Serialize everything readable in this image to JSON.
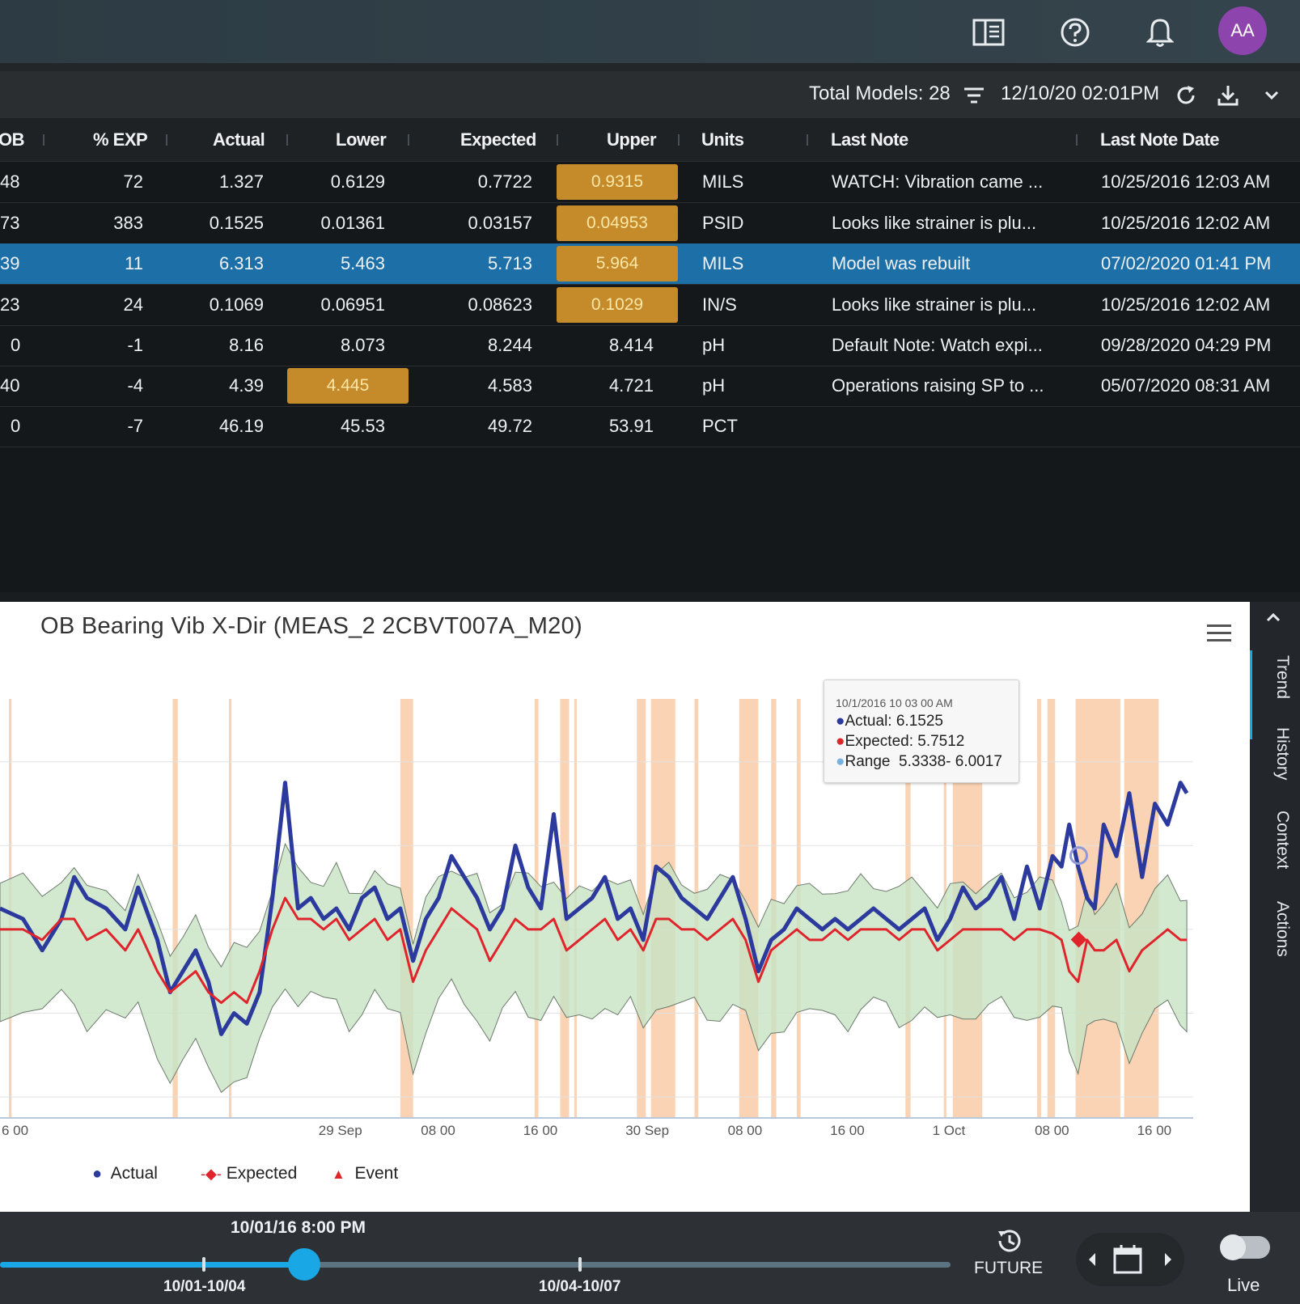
{
  "topbar": {
    "avatar_initials": "AA",
    "icons": [
      "book-icon",
      "help-icon",
      "bell-icon"
    ]
  },
  "toolbar": {
    "total_models": "Total Models: 28",
    "timestamp": "12/10/20 02:01PM",
    "icons": [
      "filter-icon",
      "refresh-icon",
      "download-icon",
      "chevron-down-icon"
    ]
  },
  "grid": {
    "columns": [
      "OB",
      "% EXP",
      "Actual",
      "Lower",
      "Expected",
      "Upper",
      "Units",
      "Last Note",
      "Last Note Date"
    ],
    "rows": [
      {
        "ob": "48",
        "exp": "72",
        "actual": "1.327",
        "lower": "0.6129",
        "expected": "0.7722",
        "upper": "0.9315",
        "units": "MILS",
        "note": "WATCH: Vibration came ...",
        "date": "10/25/2016 12:03 AM"
      },
      {
        "ob": "73",
        "exp": "383",
        "actual": "0.1525",
        "lower": "0.01361",
        "expected": "0.03157",
        "upper": "0.04953",
        "units": "PSID",
        "note": "Looks like strainer is plu...",
        "date": "10/25/2016 12:02 AM"
      },
      {
        "ob": "39",
        "exp": "11",
        "actual": "6.313",
        "lower": "5.463",
        "expected": "5.713",
        "upper": "5.964",
        "units": "MILS",
        "note": "Model was rebuilt",
        "date": "07/02/2020 01:41 PM"
      },
      {
        "ob": "23",
        "exp": "24",
        "actual": "0.1069",
        "lower": "0.06951",
        "expected": "0.08623",
        "upper": "0.1029",
        "units": "IN/S",
        "note": "Looks like strainer is plu...",
        "date": "10/25/2016 12:02 AM"
      },
      {
        "ob": "0",
        "exp": "-1",
        "actual": "8.16",
        "lower": "8.073",
        "expected": "8.244",
        "upper": "8.414",
        "units": "pH",
        "note": "Default Note: Watch expi...",
        "date": "09/28/2020 04:29 PM"
      },
      {
        "ob": "40",
        "exp": "-4",
        "actual": "4.39",
        "lower": "4.445",
        "expected": "4.583",
        "upper": "4.721",
        "units": "pH",
        "note": "Operations raising SP to ...",
        "date": "05/07/2020 08:31 AM"
      },
      {
        "ob": "0",
        "exp": "-7",
        "actual": "46.19",
        "lower": "45.53",
        "expected": "49.72",
        "upper": "53.91",
        "units": "PCT",
        "note": "",
        "date": ""
      }
    ],
    "highlight_color": "#c58a2a",
    "selected_color": "#1d6fa8"
  },
  "chart": {
    "title": "OB Bearing Vib X-Dir (MEAS_2 2CBVT007A_M20)",
    "tooltip": {
      "date": "10/1/2016 10 03 00 AM",
      "actual": "Actual: 6.1525",
      "expected": "Expected: 5.7512",
      "range_label": "Range",
      "range_value": "5.3338- 6.0017"
    },
    "legend": [
      "Actual",
      "Expected",
      "Event"
    ],
    "colors": {
      "actual": "#2c3a9e",
      "expected": "#e0242c",
      "range": "#cde5c9",
      "event": "#f7c49a"
    }
  },
  "chart_data": {
    "type": "line",
    "title": "OB Bearing Vib X-Dir (MEAS_2 2CBVT007A_M20)",
    "x_tick_labels": [
      "6 00",
      "29  Sep",
      "08 00",
      "16 00",
      "30  Sep",
      "08 00",
      "16 00",
      "1  Oct",
      "08 00",
      "16 00"
    ],
    "x_ticks_hours": [
      -2,
      24,
      32,
      40,
      48,
      56,
      64,
      72,
      80,
      88
    ],
    "xlim_hours": [
      -2.3,
      91
    ],
    "ylim": [
      4.9,
      6.9
    ],
    "grid": true,
    "legend_position": "bottom-left",
    "series": [
      {
        "name": "Actual",
        "x": [
          -2.3,
          -0.5,
          1,
          2.5,
          3.5,
          4.5,
          6,
          7.5,
          8.5,
          10,
          11,
          12,
          13,
          14,
          15,
          16,
          17,
          18,
          19,
          20,
          21,
          22,
          23,
          24,
          25,
          26,
          27,
          28,
          29,
          30,
          31,
          32,
          33,
          34,
          35,
          36,
          37,
          38,
          39,
          40,
          41,
          42,
          43,
          44,
          45,
          46,
          47,
          48,
          49,
          50,
          51,
          52,
          53,
          54,
          55,
          56,
          57,
          58,
          59,
          60,
          61,
          62,
          63,
          64,
          65,
          66,
          67,
          68,
          69,
          70,
          71,
          72,
          73,
          74,
          75,
          76,
          77,
          78,
          79,
          80,
          80.7,
          81.3,
          82,
          82.7,
          83.3,
          84,
          85,
          86,
          87,
          88,
          89,
          90,
          90.5
        ],
        "y": [
          5.9,
          5.85,
          5.7,
          5.85,
          6.05,
          5.95,
          5.9,
          5.8,
          6.0,
          5.75,
          5.5,
          5.6,
          5.7,
          5.55,
          5.3,
          5.4,
          5.35,
          5.5,
          5.95,
          6.5,
          5.9,
          5.95,
          5.85,
          5.9,
          5.8,
          5.95,
          6.0,
          5.85,
          5.9,
          5.65,
          5.85,
          5.95,
          6.15,
          6.05,
          5.95,
          5.8,
          5.9,
          6.2,
          6.0,
          5.9,
          6.35,
          5.85,
          5.9,
          5.95,
          6.05,
          5.85,
          5.9,
          5.75,
          6.1,
          6.05,
          5.95,
          5.9,
          5.85,
          5.95,
          6.05,
          5.85,
          5.6,
          5.75,
          5.8,
          5.9,
          5.85,
          5.8,
          5.85,
          5.8,
          5.85,
          5.9,
          5.85,
          5.8,
          5.85,
          5.9,
          5.75,
          5.85,
          6.0,
          5.9,
          5.95,
          6.05,
          5.85,
          6.1,
          5.9,
          6.15,
          6.1,
          6.3,
          6.1,
          5.95,
          5.9,
          6.3,
          6.15,
          6.45,
          6.05,
          6.4,
          6.3,
          6.5,
          6.45
        ]
      },
      {
        "name": "Expected",
        "x": [
          -2.3,
          -0.5,
          1,
          2.5,
          3.5,
          4.5,
          6,
          7.5,
          8.5,
          10,
          11,
          12,
          13,
          14,
          15,
          16,
          17,
          18,
          19,
          20,
          21,
          22,
          23,
          24,
          25,
          26,
          27,
          28,
          29,
          30,
          31,
          32,
          33,
          34,
          35,
          36,
          37,
          38,
          39,
          40,
          41,
          42,
          43,
          44,
          45,
          46,
          47,
          48,
          49,
          50,
          51,
          52,
          53,
          54,
          55,
          56,
          57,
          58,
          59,
          60,
          61,
          62,
          63,
          64,
          65,
          66,
          67,
          68,
          69,
          70,
          71,
          72,
          73,
          74,
          75,
          76,
          77,
          78,
          79,
          80,
          80.7,
          81.3,
          82,
          82.7,
          83.3,
          84,
          85,
          86,
          87,
          88,
          89,
          90,
          90.5
        ],
        "y": [
          5.8,
          5.8,
          5.75,
          5.85,
          5.85,
          5.75,
          5.8,
          5.7,
          5.8,
          5.6,
          5.5,
          5.55,
          5.6,
          5.5,
          5.45,
          5.5,
          5.45,
          5.6,
          5.8,
          5.95,
          5.85,
          5.85,
          5.8,
          5.85,
          5.75,
          5.8,
          5.85,
          5.75,
          5.8,
          5.55,
          5.7,
          5.8,
          5.9,
          5.85,
          5.8,
          5.65,
          5.75,
          5.85,
          5.8,
          5.8,
          5.85,
          5.7,
          5.75,
          5.8,
          5.85,
          5.75,
          5.8,
          5.7,
          5.85,
          5.85,
          5.8,
          5.8,
          5.75,
          5.8,
          5.85,
          5.75,
          5.55,
          5.7,
          5.75,
          5.8,
          5.75,
          5.75,
          5.8,
          5.75,
          5.8,
          5.8,
          5.8,
          5.75,
          5.8,
          5.8,
          5.7,
          5.75,
          5.8,
          5.8,
          5.8,
          5.8,
          5.75,
          5.8,
          5.8,
          5.78,
          5.75,
          5.6,
          5.55,
          5.75,
          5.7,
          5.7,
          5.75,
          5.6,
          5.7,
          5.75,
          5.8,
          5.75,
          5.75
        ]
      }
    ]
  },
  "sidetabs": [
    "Trend",
    "History",
    "Context",
    "Actions"
  ],
  "timeline": {
    "current": "10/01/16 8:00 PM",
    "range1": "10/01-10/04",
    "range2": "10/04-10/07",
    "future_label": "FUTURE",
    "live_label": "Live",
    "progress": 0.32
  }
}
